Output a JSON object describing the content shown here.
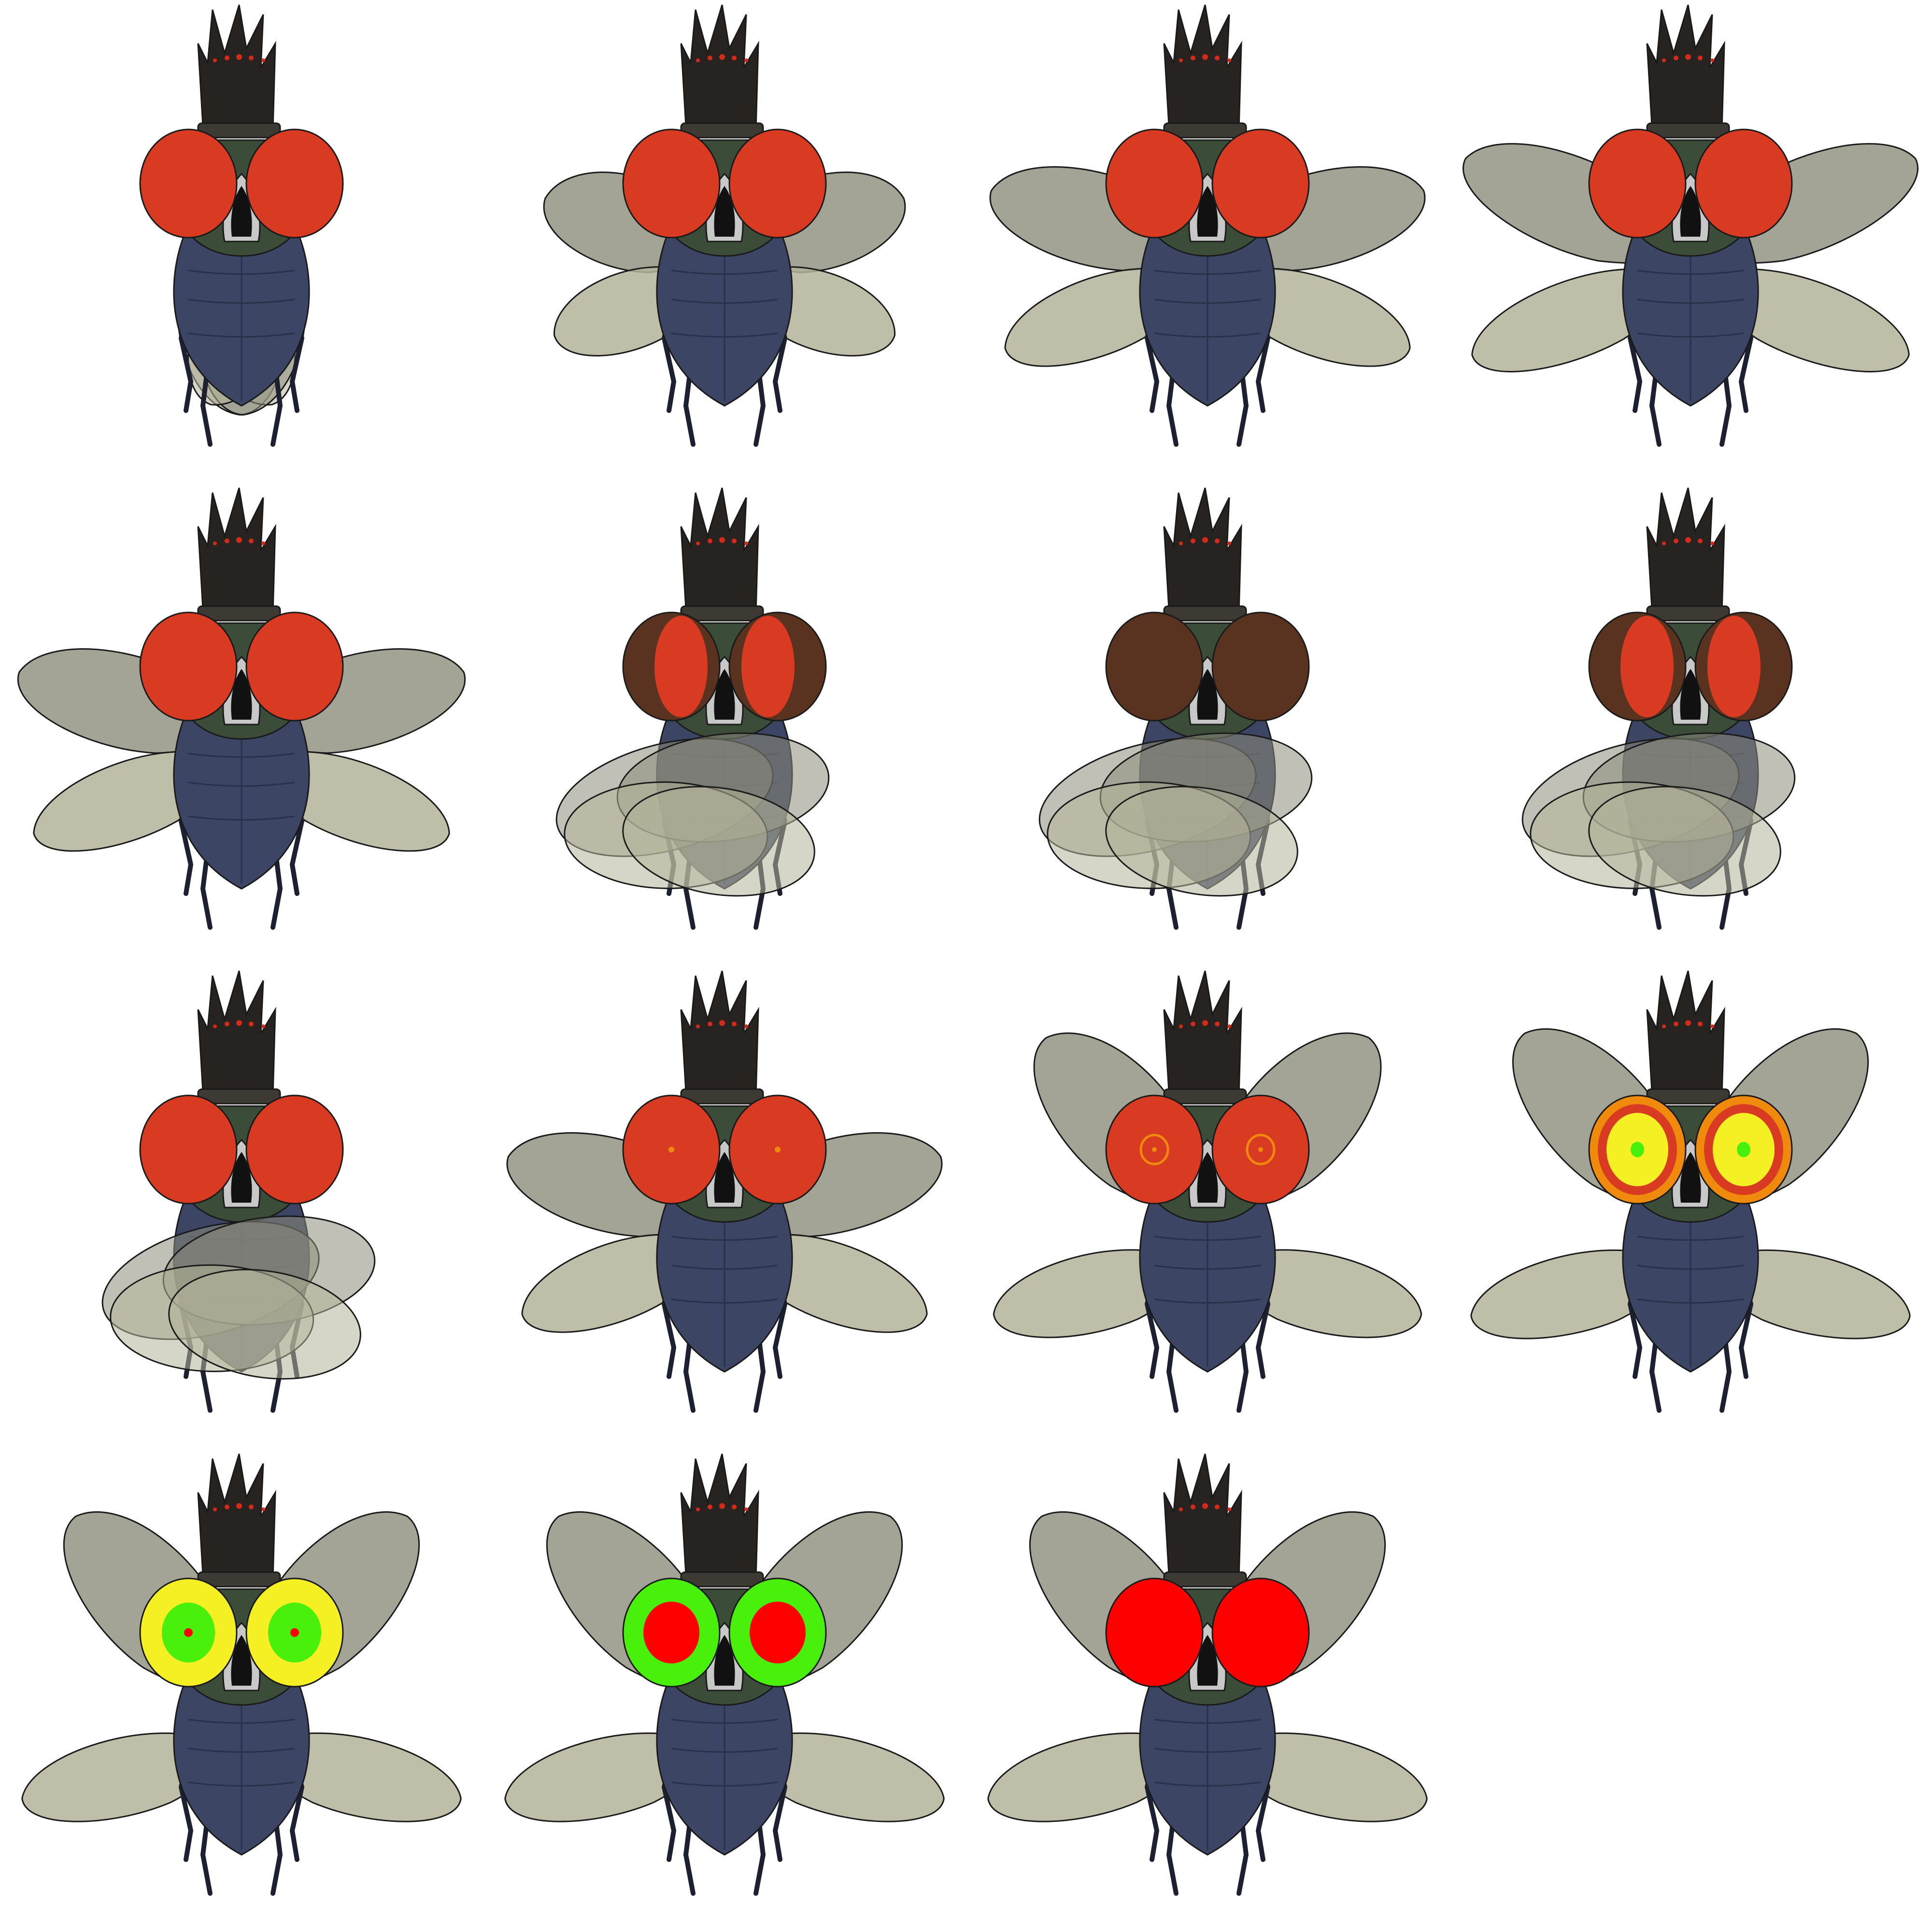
{
  "sheet": {
    "grid": {
      "columns": 4,
      "rows": 4
    },
    "background": "#ffffff",
    "colors": {
      "outline": "#1a1a1a",
      "proboscis": "#262321",
      "proboscis_dots": "#d42a1a",
      "head": "#3b4d38",
      "body": "#3c4664",
      "body_dark": "#2a3049",
      "legs": "#1c2030",
      "wing_upper": "#8c8c7c",
      "wing_lower": "#b4b49a",
      "eye_red": "#d93a22",
      "eye_brown": "#5a3220",
      "ring_orange": "#f08a0c",
      "ring_yellow": "#f4f024",
      "ring_green": "#48f00c",
      "bright_red": "#ff0000"
    }
  },
  "frames": [
    {
      "id": 1,
      "wing_pose": "folded-down",
      "wing_spread": 0.15,
      "eye_style": "red"
    },
    {
      "id": 2,
      "wing_pose": "swept-back",
      "wing_spread": 0.55,
      "eye_style": "red"
    },
    {
      "id": 3,
      "wing_pose": "open",
      "wing_spread": 0.85,
      "eye_style": "red"
    },
    {
      "id": 4,
      "wing_pose": "open-forward",
      "wing_spread": 1.0,
      "eye_style": "red"
    },
    {
      "id": 5,
      "wing_pose": "open",
      "wing_spread": 0.9,
      "eye_style": "red"
    },
    {
      "id": 6,
      "wing_pose": "blur-front",
      "wing_spread": 0.3,
      "eye_style": "red-brown"
    },
    {
      "id": 7,
      "wing_pose": "blur-front",
      "wing_spread": 0.3,
      "eye_style": "brown"
    },
    {
      "id": 8,
      "wing_pose": "blur-center",
      "wing_spread": 0.35,
      "eye_style": "red-brown"
    },
    {
      "id": 9,
      "wing_pose": "blur-side",
      "wing_spread": 0.5,
      "eye_style": "red"
    },
    {
      "id": 10,
      "wing_pose": "open",
      "wing_spread": 0.85,
      "eye_style": "red-orange-dot"
    },
    {
      "id": 11,
      "wing_pose": "raised",
      "wing_spread": 0.9,
      "eye_style": "red-orange-ring"
    },
    {
      "id": 12,
      "wing_pose": "raised",
      "wing_spread": 0.95,
      "eye_style": "orange-target"
    },
    {
      "id": 13,
      "wing_pose": "raised",
      "wing_spread": 0.95,
      "eye_style": "yellow-target"
    },
    {
      "id": 14,
      "wing_pose": "raised",
      "wing_spread": 0.95,
      "eye_style": "green-target"
    },
    {
      "id": 15,
      "wing_pose": "raised",
      "wing_spread": 0.95,
      "eye_style": "bright-red"
    }
  ]
}
